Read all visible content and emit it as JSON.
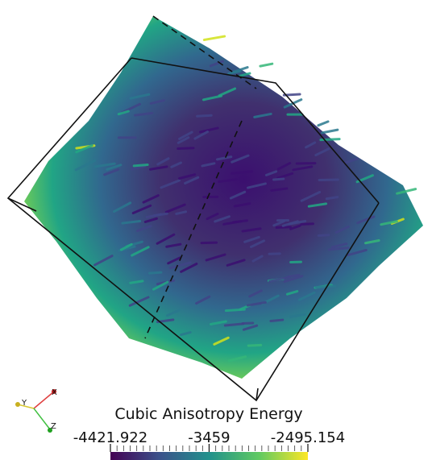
{
  "colorbar": {
    "title": "Cubic Anisotropy Energy",
    "range": [
      -4421.922,
      -2495.154
    ],
    "ticks": [
      -4421.922,
      -3459,
      -2495.154
    ]
  },
  "axes_widget": {
    "x": "X",
    "y": "Y",
    "z": "Z"
  }
}
